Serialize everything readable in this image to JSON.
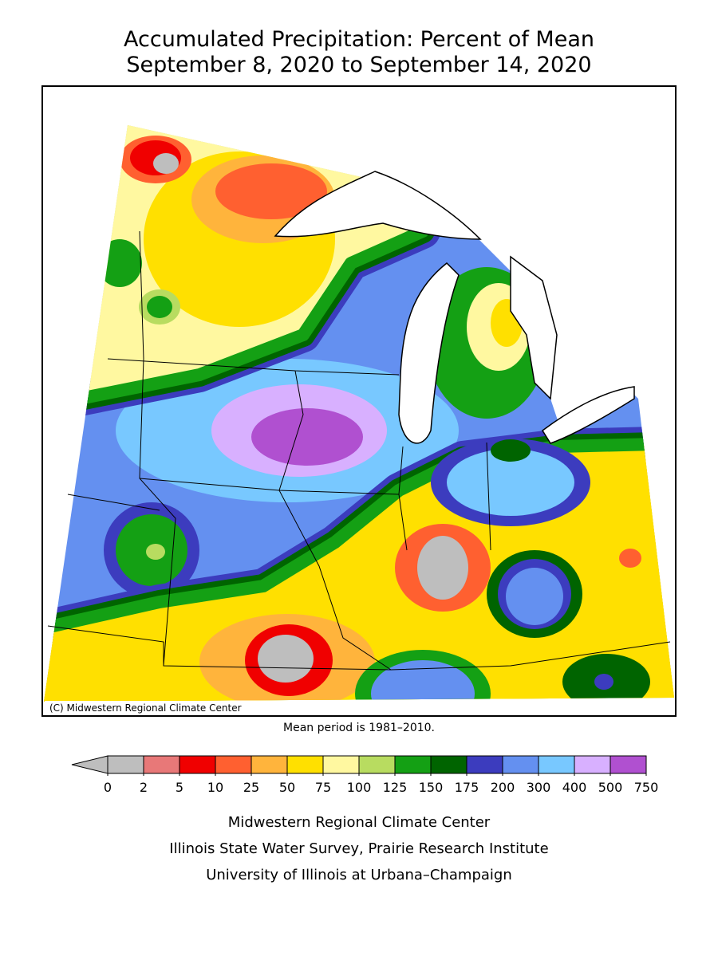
{
  "title": [
    "Accumulated Precipitation: Percent of Mean",
    "September 8, 2020 to September 14, 2020"
  ],
  "map": {
    "credit": "(C) Midwestern Regional Climate Center"
  },
  "note": "Mean period is 1981–2010.",
  "legend": {
    "ticks": [
      0,
      2,
      5,
      10,
      25,
      50,
      75,
      100,
      125,
      150,
      175,
      200,
      300,
      400,
      500,
      750
    ],
    "below_color": "#bebebe",
    "colors": [
      "#bebebe",
      "#e87878",
      "#f00000",
      "#ff6030",
      "#ffb43c",
      "#ffe000",
      "#fff8a0",
      "#b8dc60",
      "#14a014",
      "#006400",
      "#3c3cbe",
      "#6490f0",
      "#78c8ff",
      "#d8b0ff",
      "#b050d0"
    ]
  },
  "footer": [
    "Midwestern Regional Climate Center",
    "Illinois State Water Survey, Prairie Research Institute",
    "University of Illinois at Urbana–Champaign"
  ]
}
